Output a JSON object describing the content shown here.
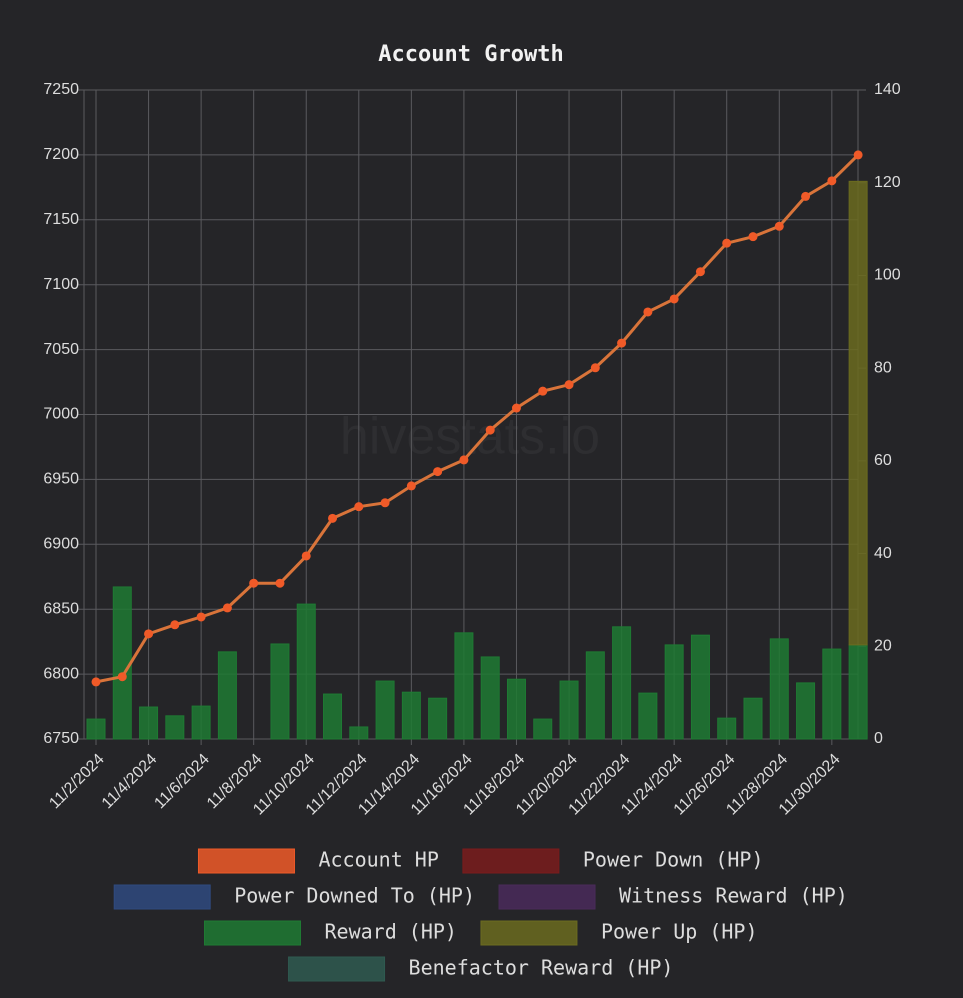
{
  "chart_data": {
    "type": "bar-line",
    "title": "Account Growth",
    "watermark": "hivestats.io",
    "categories": [
      "11/2/2024",
      null,
      "11/4/2024",
      null,
      "11/6/2024",
      null,
      "11/8/2024",
      null,
      "11/10/2024",
      null,
      "11/12/2024",
      null,
      "11/14/2024",
      null,
      "11/16/2024",
      null,
      "11/18/2024",
      null,
      "11/20/2024",
      null,
      "11/22/2024",
      null,
      "11/24/2024",
      null,
      "11/26/2024",
      null,
      "11/28/2024",
      null,
      "11/30/2024",
      null
    ],
    "ylim": [
      6750,
      7250
    ],
    "yticks": [
      6750,
      6800,
      6850,
      6900,
      6950,
      7000,
      7050,
      7100,
      7150,
      7200,
      7250
    ],
    "y2lim": [
      0,
      140
    ],
    "y2ticks": [
      0,
      20,
      40,
      60,
      80,
      100,
      120,
      140
    ],
    "grid": true,
    "legend": "bottom",
    "stacked": true,
    "series": [
      {
        "name": "Account HP",
        "color": "#f05a28",
        "type": "line",
        "axis": "y",
        "values": [
          6794,
          6798,
          6831,
          6838,
          6844,
          6851,
          6870,
          6870,
          6891,
          6920,
          6929,
          6932,
          6945,
          6956,
          6965,
          6988,
          7005,
          7018,
          7023,
          7036,
          7055,
          7079,
          7089,
          7110,
          7132,
          7137,
          7145,
          7168,
          7180,
          7200
        ]
      },
      {
        "name": "Power Down (HP)",
        "color": "#7a1c1c",
        "type": "bar",
        "axis": "y2",
        "values": [
          0,
          0,
          0,
          0,
          0,
          0,
          0,
          0,
          0,
          0,
          0,
          0,
          0,
          0,
          0,
          0,
          0,
          0,
          0,
          0,
          0,
          0,
          0,
          0,
          0,
          0,
          0,
          0,
          0,
          0
        ]
      },
      {
        "name": "Power Downed To (HP)",
        "color": "#2f4a7f",
        "type": "bar",
        "axis": "y2",
        "values": [
          0,
          0,
          0,
          0,
          0,
          0,
          0,
          0,
          0,
          0,
          0,
          0,
          0,
          0,
          0,
          0,
          0,
          0,
          0,
          0,
          0,
          0,
          0,
          0,
          0,
          0,
          0,
          0,
          0,
          0
        ]
      },
      {
        "name": "Witness Reward (HP)",
        "color": "#4a2a5a",
        "type": "bar",
        "axis": "y2",
        "values": [
          0,
          0,
          0,
          0,
          0,
          0,
          0,
          0,
          0,
          0,
          0,
          0,
          0,
          0,
          0,
          0,
          0,
          0,
          0,
          0,
          0,
          0,
          0,
          0,
          0,
          0,
          0,
          0,
          0,
          0
        ]
      },
      {
        "name": "Reward (HP)",
        "color": "#1f7a33",
        "type": "bar",
        "axis": "y2",
        "values": [
          4.3,
          32.8,
          6.9,
          5.0,
          7.1,
          18.8,
          0,
          20.5,
          29.1,
          9.7,
          2.6,
          12.5,
          10.1,
          8.8,
          22.9,
          17.7,
          12.9,
          4.3,
          12.5,
          18.8,
          24.2,
          9.9,
          20.3,
          22.4,
          4.5,
          8.8,
          21.6,
          12.1,
          19.4,
          20.3
        ]
      },
      {
        "name": "Power Up (HP)",
        "color": "#6b6b1f",
        "type": "bar",
        "axis": "y2",
        "values": [
          0,
          0,
          0,
          0,
          0,
          0,
          0,
          0,
          0,
          0,
          0,
          0,
          0,
          0,
          0,
          0,
          0,
          0,
          0,
          0,
          0,
          0,
          0,
          0,
          0,
          0,
          0,
          0,
          0,
          100
        ]
      },
      {
        "name": "Benefactor Reward (HP)",
        "color": "#2f5a50",
        "type": "bar",
        "axis": "y2",
        "values": [
          0,
          0,
          0,
          0,
          0,
          0,
          0,
          0,
          0,
          0,
          0,
          0,
          0,
          0,
          0,
          0,
          0,
          0,
          0,
          0,
          0,
          0,
          0,
          0,
          0,
          0,
          0,
          0,
          0,
          0
        ]
      }
    ]
  }
}
